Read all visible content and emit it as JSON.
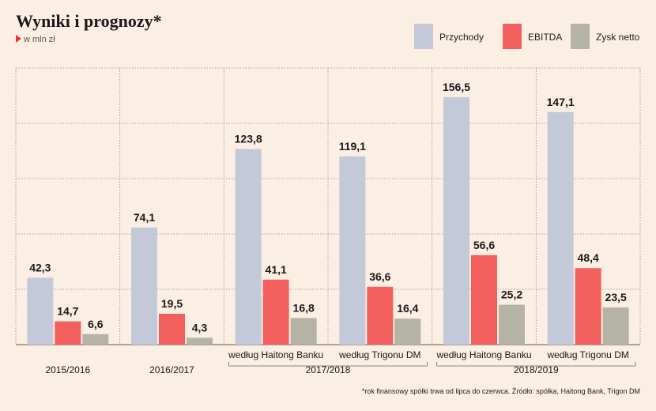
{
  "title": "Wyniki i prognozy*",
  "subtitle": "w mln zł",
  "footnote": "*rok finansowy spółki trwa od lipca do czerwca. Źródło: spółka, Haitong Bank, Trigon DM",
  "colors": {
    "przychody": "#c4c9d9",
    "ebitda": "#f4605e",
    "zysk": "#b4b3a4",
    "grid": "#8a8a8a",
    "background": "#fbeee3"
  },
  "chart_data": {
    "type": "bar",
    "title": "Wyniki i prognozy*",
    "ylim": [
      0,
      175
    ],
    "grid": true,
    "legend_position": "top-right",
    "categories": [
      "2015/2016",
      "2016/2017",
      "według Haitong Banku",
      "według Trigonu DM",
      "według Haitong Banku",
      "według Trigonu DM"
    ],
    "groups": [
      {
        "label": "2015/2016",
        "sub_label": ""
      },
      {
        "label": "2016/2017",
        "sub_label": ""
      },
      {
        "label": "2017/2018",
        "sub_label": "według Haitong Banku"
      },
      {
        "label": "2017/2018",
        "sub_label": "według Trigonu DM"
      },
      {
        "label": "2018/2019",
        "sub_label": "według Haitong Banku"
      },
      {
        "label": "2018/2019",
        "sub_label": "według Trigonu DM"
      }
    ],
    "bracket_labels": [
      {
        "label": "2017/2018",
        "groups": [
          2,
          3
        ]
      },
      {
        "label": "2018/2019",
        "groups": [
          4,
          5
        ]
      }
    ],
    "series": [
      {
        "name": "Przychody",
        "color": "#c4c9d9",
        "values": [
          42.3,
          74.1,
          123.8,
          119.1,
          156.5,
          147.1
        ],
        "labels": [
          "42,3",
          "74,1",
          "123,8",
          "119,1",
          "156,5",
          "147,1"
        ]
      },
      {
        "name": "EBITDA",
        "color": "#f4605e",
        "values": [
          14.7,
          19.5,
          41.1,
          36.6,
          56.6,
          48.4
        ],
        "labels": [
          "14,7",
          "19,5",
          "41,1",
          "36,6",
          "56,6",
          "48,4"
        ]
      },
      {
        "name": "Zysk netto",
        "color": "#b4b3a4",
        "values": [
          6.6,
          4.3,
          16.8,
          16.4,
          25.2,
          23.5
        ],
        "labels": [
          "6,6",
          "4,3",
          "16,8",
          "16,4",
          "25,2",
          "23,5"
        ]
      }
    ]
  }
}
